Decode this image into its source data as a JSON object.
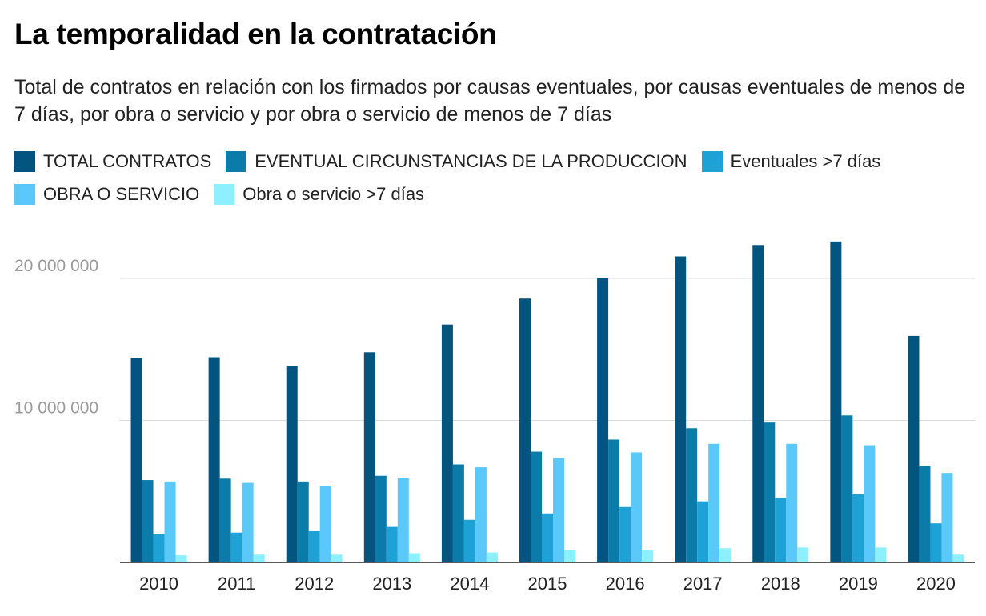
{
  "title": "La temporalidad en la contratación",
  "subtitle": "Total de contratos en relación con los firmados por causas eventuales, por causas eventuales de menos de 7 días, por obra o servicio y por obra o servicio de menos de 7 días",
  "legend": [
    {
      "label": "TOTAL CONTRATOS",
      "color": "#03547e"
    },
    {
      "label": "EVENTUAL CIRCUNSTANCIAS DE LA PRODUCCION",
      "color": "#0b7caa"
    },
    {
      "label": "Eventuales >7 días",
      "color": "#1ea2d6"
    },
    {
      "label": "OBRA O SERVICIO",
      "color": "#5ac8f8"
    },
    {
      "label": "Obra o servicio >7 días",
      "color": "#8ef0ff"
    }
  ],
  "chart_data": {
    "type": "bar",
    "title": "La temporalidad en la contratación",
    "categories": [
      "2010",
      "2011",
      "2012",
      "2013",
      "2014",
      "2015",
      "2016",
      "2017",
      "2018",
      "2019",
      "2020"
    ],
    "ylim": [
      0,
      22700000
    ],
    "yticks": [
      {
        "value": 10000000,
        "label": "10 000 000"
      },
      {
        "value": 20000000,
        "label": "20 000 000"
      }
    ],
    "grid": true,
    "legend_position": "top",
    "series": [
      {
        "name": "TOTAL CONTRATOS",
        "color": "#03547e",
        "values": [
          14400000,
          14450000,
          13850000,
          14800000,
          16750000,
          18580000,
          20050000,
          21550000,
          22350000,
          22600000,
          15950000
        ]
      },
      {
        "name": "EVENTUAL CIRCUNSTANCIAS DE LA PRODUCCION",
        "color": "#0b7caa",
        "values": [
          5800000,
          5900000,
          5700000,
          6100000,
          6900000,
          7800000,
          8650000,
          9450000,
          9850000,
          10350000,
          6800000
        ]
      },
      {
        "name": "Eventuales >7 días",
        "color": "#1ea2d6",
        "values": [
          2000000,
          2100000,
          2200000,
          2500000,
          3000000,
          3450000,
          3900000,
          4300000,
          4550000,
          4800000,
          2750000
        ]
      },
      {
        "name": "OBRA O SERVICIO",
        "color": "#5ac8f8",
        "values": [
          5700000,
          5600000,
          5400000,
          5950000,
          6700000,
          7350000,
          7750000,
          8350000,
          8350000,
          8250000,
          6300000
        ]
      },
      {
        "name": "Obra o servicio >7 días",
        "color": "#8ef0ff",
        "values": [
          500000,
          550000,
          550000,
          650000,
          700000,
          850000,
          900000,
          1000000,
          1050000,
          1050000,
          550000
        ]
      }
    ]
  }
}
